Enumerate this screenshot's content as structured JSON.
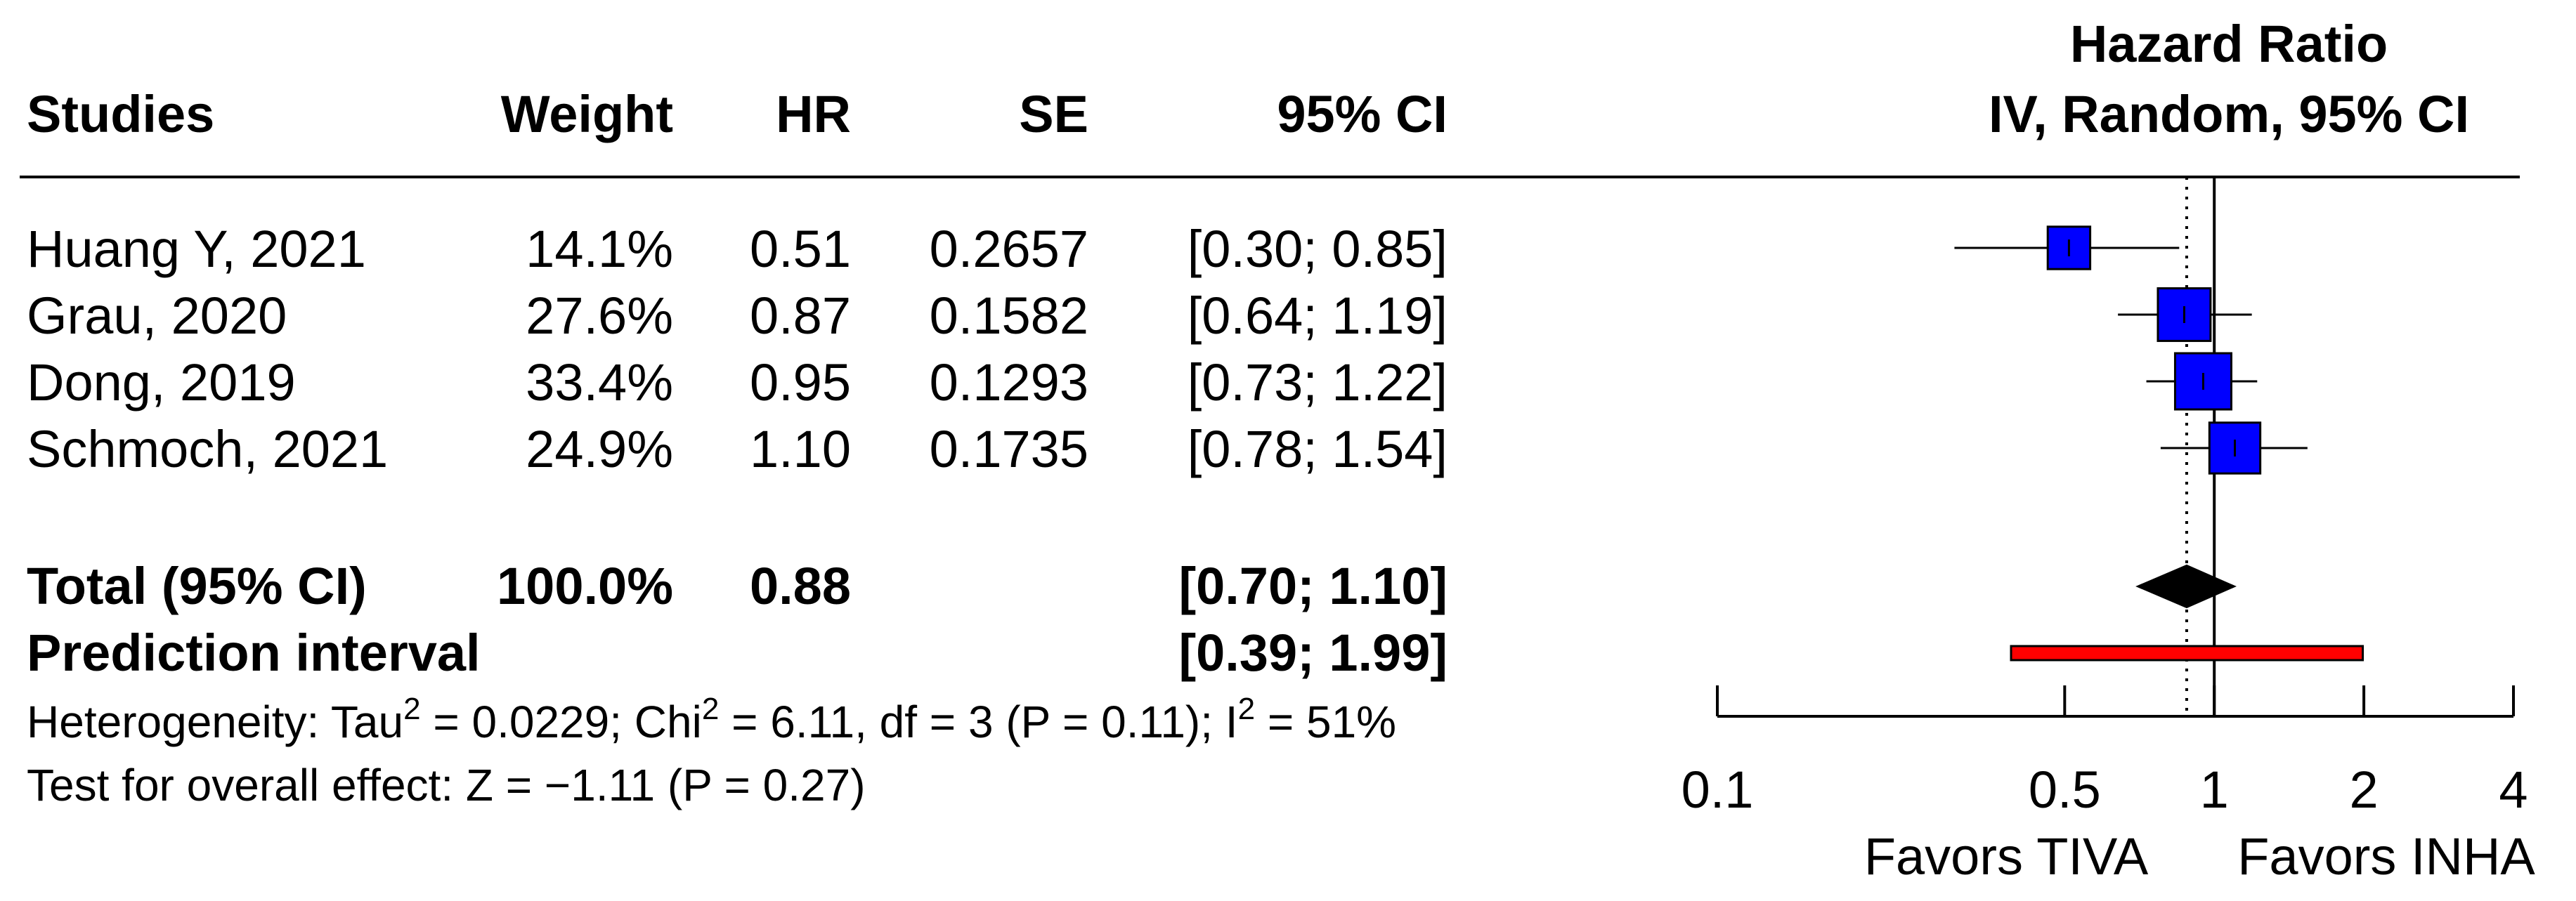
{
  "chart_data": {
    "type": "forest",
    "columns": {
      "studies": "Studies",
      "weight": "Weight",
      "hr": "HR",
      "se": "SE",
      "ci": "95% CI"
    },
    "plot_title": [
      "Hazard Ratio",
      "IV, Random, 95% CI"
    ],
    "studies": [
      {
        "name": "Huang Y, 2021",
        "weight": "14.1%",
        "hr": "0.51",
        "se": "0.2657",
        "ci_text": "[0.30; 0.85]",
        "hr_value": 0.51,
        "lower": 0.3,
        "upper": 0.85,
        "weight_value": 14.1
      },
      {
        "name": "Grau, 2020",
        "weight": "27.6%",
        "hr": "0.87",
        "se": "0.1582",
        "ci_text": "[0.64; 1.19]",
        "hr_value": 0.87,
        "lower": 0.64,
        "upper": 1.19,
        "weight_value": 27.6
      },
      {
        "name": "Dong, 2019",
        "weight": "33.4%",
        "hr": "0.95",
        "se": "0.1293",
        "ci_text": "[0.73; 1.22]",
        "hr_value": 0.95,
        "lower": 0.73,
        "upper": 1.22,
        "weight_value": 33.4
      },
      {
        "name": "Schmoch, 2021",
        "weight": "24.9%",
        "hr": "1.10",
        "se": "0.1735",
        "ci_text": "[0.78; 1.54]",
        "hr_value": 1.1,
        "lower": 0.78,
        "upper": 1.54,
        "weight_value": 24.9
      }
    ],
    "total": {
      "label": "Total (95% CI)",
      "weight": "100.0%",
      "hr": "0.88",
      "ci_text": "[0.70; 1.10]",
      "hr_value": 0.88,
      "lower": 0.7,
      "upper": 1.1
    },
    "prediction": {
      "label": "Prediction interval",
      "ci_text": "[0.39; 1.99]",
      "lower": 0.39,
      "upper": 1.99
    },
    "heterogeneity": {
      "prefix": "Heterogeneity: Tau",
      "tau2": " = 0.0229; Chi",
      "chi2": " = 6.11, df = 3 (P = 0.11); I",
      "i2": " = 51%",
      "sup": "2"
    },
    "overall_effect": "Test for overall effect: Z = −1.11 (P = 0.27)",
    "x_axis": {
      "scale": "log",
      "ticks": [
        0.1,
        0.5,
        1,
        2,
        4
      ],
      "tick_labels": [
        "0.1",
        "0.5",
        "1",
        "2",
        "4"
      ],
      "range": [
        0.1,
        4
      ],
      "reference_line": 1,
      "pooled_reference_line": 0.88
    },
    "favors_left": "Favors TIVA",
    "favors_right": "Favors INHA",
    "colors": {
      "study_square": "#0000ff",
      "diamond": "#000000",
      "prediction_bar": "#ff0000"
    }
  }
}
